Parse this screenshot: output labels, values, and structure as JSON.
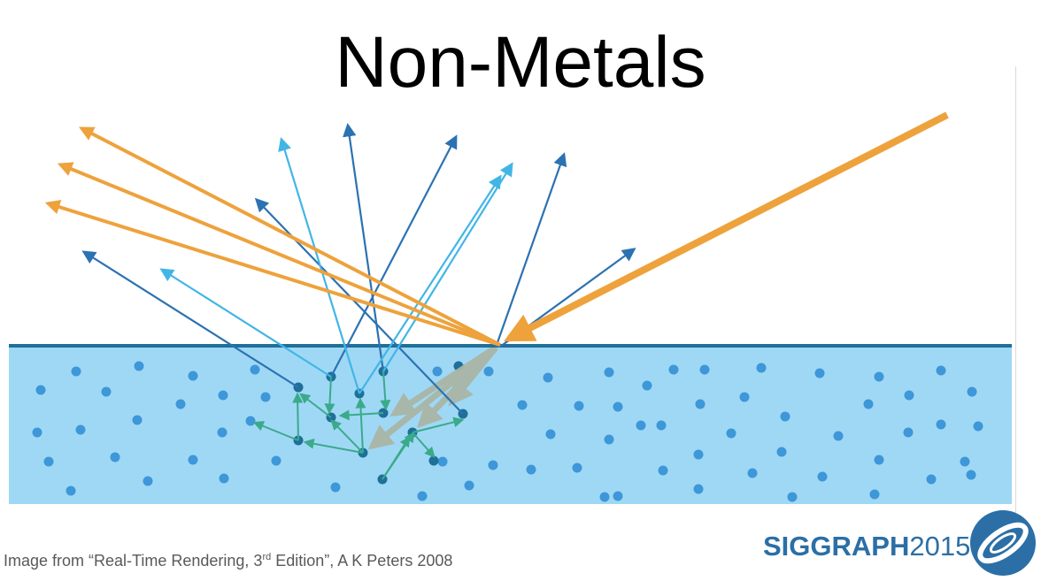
{
  "title": "Non-Metals",
  "caption": {
    "prefix": "Image from “Real-Time Rendering, 3",
    "sup": "rd",
    "suffix": " Edition”, A K Peters 2008"
  },
  "brand": {
    "name": "SIGGRAPH",
    "year": "2015"
  },
  "colors": {
    "specular": "#eea23c",
    "ray_dark": "#2b72b2",
    "ray_light": "#41b6e6",
    "internal": "#3aaa8a",
    "medium_fill": "#9fd8f5",
    "surface": "#1f6f99",
    "particle": "#3d97d8",
    "brand": "#2b6fa6"
  },
  "icons": [
    "siggraph-logo-icon"
  ]
}
